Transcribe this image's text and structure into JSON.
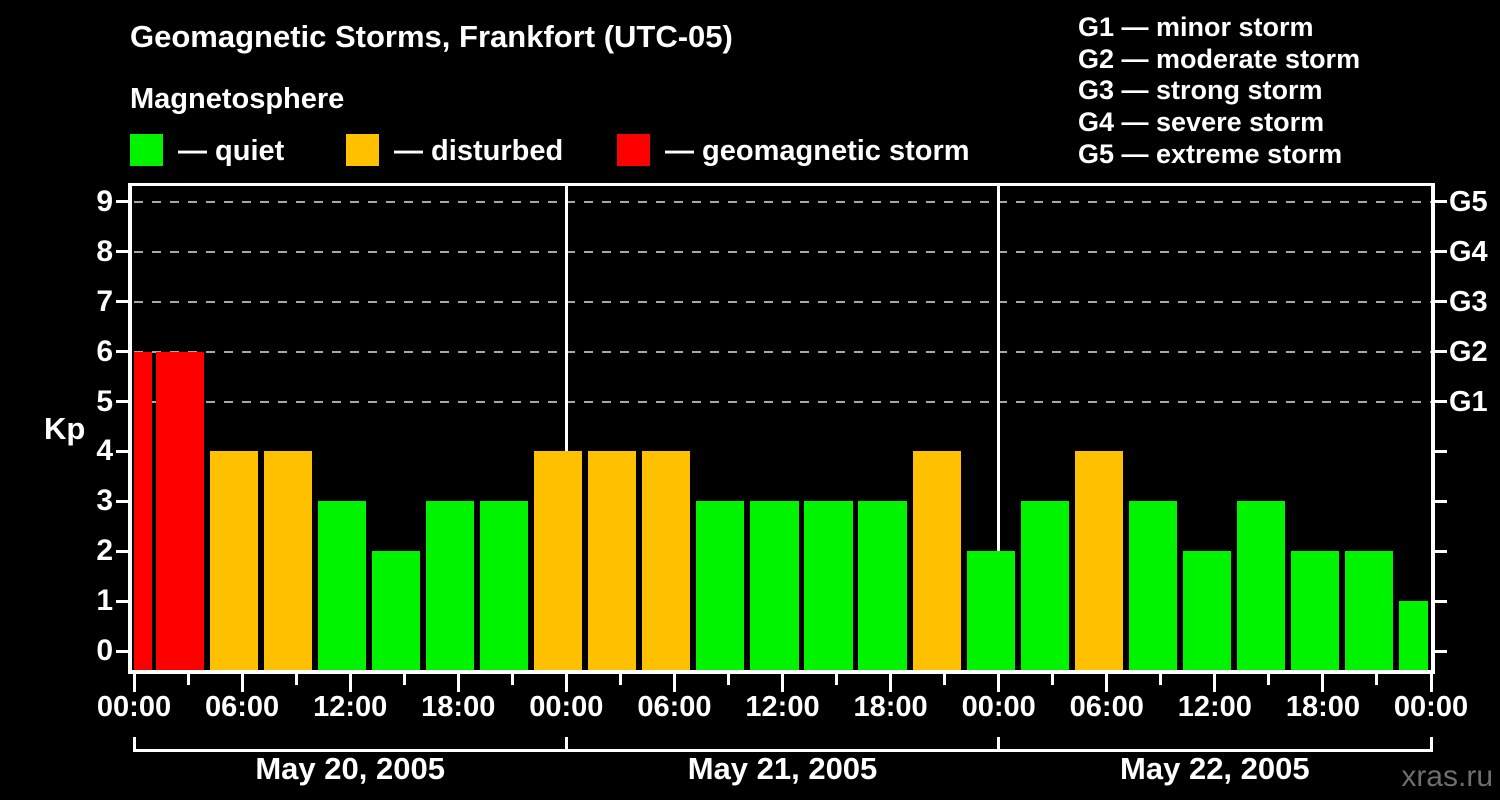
{
  "header": {
    "title": "Geomagnetic Storms, Frankfort (UTC-05)",
    "subtitle": "Magnetosphere",
    "watermark": "xras.ru"
  },
  "colors": {
    "background": "#000000",
    "text": "#ffffff",
    "grid": "#a8a8a8",
    "quiet": "#00f400",
    "disturbed": "#ffc000",
    "storm": "#ff0000",
    "watermark": "#6e6e6e"
  },
  "legend": {
    "items": [
      {
        "key": "quiet",
        "label": "— quiet",
        "color": "#00f400"
      },
      {
        "key": "disturbed",
        "label": "— disturbed",
        "color": "#ffc000"
      },
      {
        "key": "storm",
        "label": "— geomagnetic storm",
        "color": "#ff0000"
      }
    ]
  },
  "storm_scale_legend": [
    "G1 — minor storm",
    "G2 — moderate storm",
    "G3 — strong storm",
    "G4 — severe storm",
    "G5 — extreme storm"
  ],
  "chart_data": {
    "type": "bar",
    "title": "Geomagnetic Storms, Frankfort (UTC-05)",
    "subtitle": "Magnetosphere",
    "ylabel": "Kp",
    "y_ticks": [
      0,
      1,
      2,
      3,
      4,
      5,
      6,
      7,
      8,
      9
    ],
    "y_range_kp": [
      -0.4,
      9.4
    ],
    "gridlines_kp": [
      5,
      6,
      7,
      8,
      9
    ],
    "grid_style": "dashed horizontal lines at G1–G5 levels",
    "right_axis_labels": [
      {
        "text": "G1",
        "kp": 5
      },
      {
        "text": "G2",
        "kp": 6
      },
      {
        "text": "G3",
        "kp": 7
      },
      {
        "text": "G4",
        "kp": 8
      },
      {
        "text": "G5",
        "kp": 9
      }
    ],
    "x_time_labels": [
      "00:00",
      "06:00",
      "12:00",
      "18:00"
    ],
    "x_tick_interval_hours": 3,
    "x_label_interval_hours": 6,
    "x_range_hours": 72,
    "days": [
      "May 20, 2005",
      "May 21, 2005",
      "May 22, 2005"
    ],
    "kp_values": [
      6,
      6,
      4,
      4,
      3,
      2,
      3,
      3,
      4,
      4,
      4,
      3,
      3,
      3,
      3,
      4,
      2,
      3,
      4,
      3,
      2,
      3,
      2,
      2,
      1
    ],
    "first_bar_clipped": true,
    "last_bar_clipped": true,
    "bar_color_rule": {
      "quiet_max": 3,
      "disturbed": 4,
      "storm_min": 5
    },
    "legend_position": "top"
  }
}
